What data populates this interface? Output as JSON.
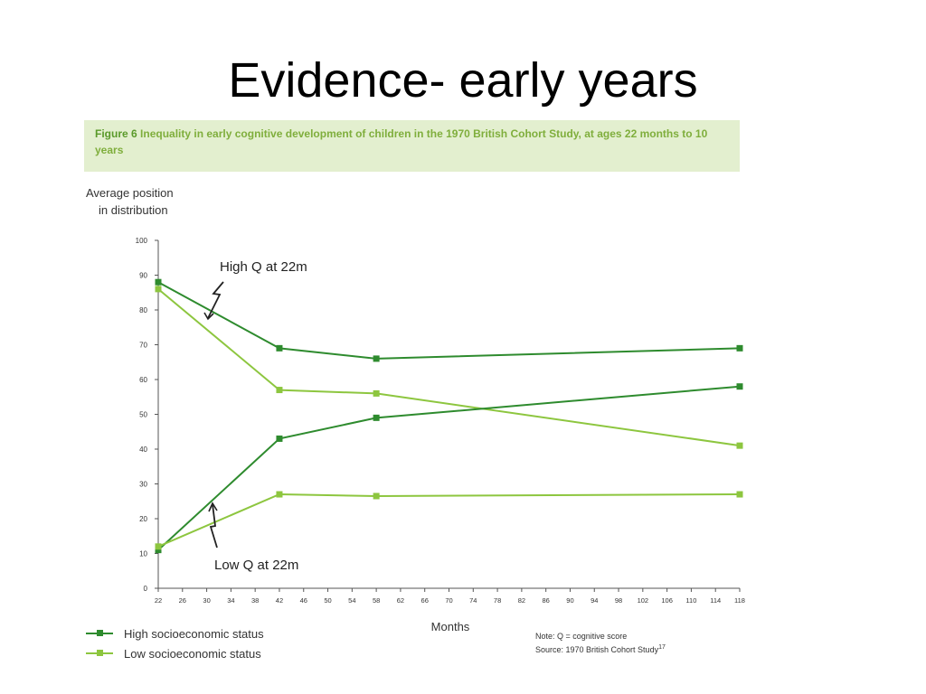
{
  "slide": {
    "title": "Evidence- early years"
  },
  "figure": {
    "label": "Figure 6",
    "caption": "Inequality in early cognitive development of children in the 1970 British Cohort Study, at ages 22 months to 10 years"
  },
  "note": {
    "line1": "Note: Q = cognitive score",
    "line2": "Source: 1970 British Cohort Study",
    "ref": "17"
  },
  "colors": {
    "high_ses": "#2e8b2e",
    "low_ses": "#8dc63f",
    "caption_bg": "#e3efcf"
  },
  "chart_data": {
    "type": "line",
    "ylabel_lines": [
      "Average position",
      "in distribution"
    ],
    "xlabel": "Months",
    "ylim": [
      0,
      100
    ],
    "xlim": [
      22,
      118
    ],
    "y_ticks": [
      0,
      10,
      20,
      30,
      40,
      50,
      60,
      70,
      80,
      90,
      100
    ],
    "y_tick_labels": [
      "0",
      "10",
      "20",
      "30",
      "40",
      "50",
      "60",
      "70",
      "80",
      "90",
      "100"
    ],
    "x_ticks": [
      22,
      26,
      30,
      34,
      38,
      42,
      46,
      50,
      54,
      58,
      62,
      66,
      70,
      74,
      78,
      82,
      86,
      90,
      94,
      98,
      102,
      106,
      110,
      114,
      118
    ],
    "legend": [
      {
        "name": "High socioeconomic status",
        "color": "#2e8b2e"
      },
      {
        "name": "Low socioeconomic status",
        "color": "#8dc63f"
      }
    ],
    "series": [
      {
        "group": "High Q at 22m",
        "status": "high",
        "x": [
          22,
          42,
          58,
          118
        ],
        "values": [
          88,
          69,
          66,
          69
        ]
      },
      {
        "group": "High Q at 22m",
        "status": "low",
        "x": [
          22,
          42,
          58,
          118
        ],
        "values": [
          86,
          57,
          56,
          41
        ]
      },
      {
        "group": "Low Q at 22m",
        "status": "high",
        "x": [
          22,
          42,
          58,
          118
        ],
        "values": [
          11,
          43,
          49,
          58
        ]
      },
      {
        "group": "Low Q at 22m",
        "status": "low",
        "x": [
          22,
          42,
          58,
          118
        ],
        "values": [
          12,
          27,
          26.5,
          27
        ]
      }
    ],
    "annotations": [
      {
        "text": "High Q at 22m"
      },
      {
        "text": "Low Q at 22m"
      }
    ]
  }
}
